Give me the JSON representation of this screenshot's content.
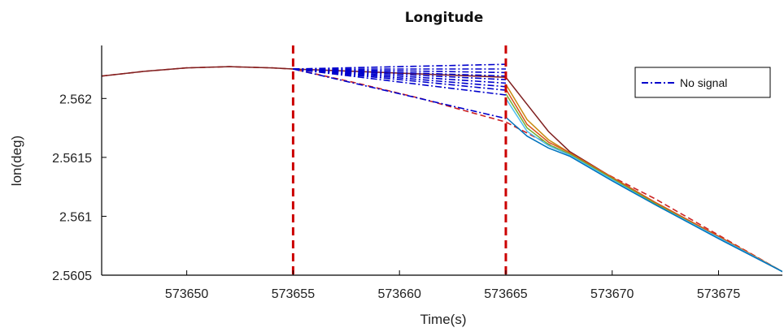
{
  "chart_data": {
    "type": "line",
    "title": "Longitude",
    "xlabel": "Time(s)",
    "ylabel": "lon(deg)",
    "xlim": [
      573646,
      573678
    ],
    "ylim": [
      2.5605,
      2.56245
    ],
    "xticks": [
      573650,
      573655,
      573660,
      573665,
      573670,
      573675
    ],
    "xtick_labels": [
      "573650",
      "573655",
      "573660",
      "573665",
      "573670",
      "573675"
    ],
    "yticks": [
      2.5605,
      2.561,
      2.5615,
      2.562
    ],
    "ytick_labels": [
      "2.5605",
      "2.561",
      "2.5615",
      "2.562"
    ],
    "grid": false,
    "legend": {
      "position": "top-right",
      "entries": [
        {
          "label": "No signal",
          "color": "#0000cc",
          "style": "dash-dot"
        }
      ]
    },
    "vlines": [
      {
        "x": 573655,
        "color": "#cc0000",
        "style": "dashed"
      },
      {
        "x": 573665,
        "color": "#cc0000",
        "style": "dashed"
      }
    ],
    "series": [
      {
        "color": "#cc2222",
        "style": "dashed",
        "x": [
          573646,
          573648,
          573650,
          573652,
          573654,
          573655,
          573658,
          573661,
          573664,
          573665,
          573668,
          573672,
          573678
        ],
        "y": [
          2.56219,
          2.56223,
          2.56226,
          2.56227,
          2.56226,
          2.56225,
          2.56213,
          2.562,
          2.56185,
          2.5618,
          2.56152,
          2.56115,
          2.56053
        ]
      },
      {
        "color": "#7f1f1f",
        "style": "solid",
        "x": [
          573646,
          573648,
          573650,
          573652,
          573654,
          573655,
          573665,
          573666,
          573667,
          573668,
          573670,
          573672,
          573675,
          573678
        ],
        "y": [
          2.56219,
          2.56223,
          2.56226,
          2.56227,
          2.56226,
          2.56225,
          2.56218,
          2.56195,
          2.56172,
          2.56155,
          2.56133,
          2.56112,
          2.56083,
          2.56053
        ]
      },
      {
        "color": "#c88a10",
        "style": "solid",
        "x": [
          573665,
          573666,
          573667,
          573668,
          573670,
          573672,
          573675,
          573678
        ],
        "y": [
          2.56212,
          2.56182,
          2.56165,
          2.56154,
          2.56133,
          2.56112,
          2.56083,
          2.56053
        ]
      },
      {
        "color": "#d9541a",
        "style": "solid",
        "x": [
          573665,
          573666,
          573667,
          573668,
          573670,
          573672,
          573675,
          573678
        ],
        "y": [
          2.56208,
          2.56178,
          2.56163,
          2.56154,
          2.56133,
          2.56112,
          2.56083,
          2.56053
        ]
      },
      {
        "color": "#77ac30",
        "style": "solid",
        "x": [
          573665,
          573666,
          573667,
          573668,
          573670,
          573672,
          573675,
          573678
        ],
        "y": [
          2.56204,
          2.56175,
          2.56161,
          2.56153,
          2.56132,
          2.56111,
          2.56082,
          2.56053
        ]
      },
      {
        "color": "#4dbeee",
        "style": "solid",
        "x": [
          573665,
          573666,
          573667,
          573668,
          573670,
          573672,
          573675,
          573678
        ],
        "y": [
          2.562,
          2.56172,
          2.5616,
          2.56152,
          2.56131,
          2.5611,
          2.56082,
          2.56053
        ]
      },
      {
        "color": "#0072bd",
        "style": "solid",
        "x": [
          573665,
          573666,
          573667,
          573668,
          573670,
          573672,
          573675,
          573678
        ],
        "y": [
          2.56184,
          2.56168,
          2.56158,
          2.56151,
          2.5613,
          2.5611,
          2.56081,
          2.56053
        ]
      },
      {
        "color": "#0000cc",
        "style": "dash-dot",
        "x": [
          573655,
          573665
        ],
        "y": [
          2.56225,
          2.56229
        ]
      },
      {
        "color": "#0000cc",
        "style": "dash-dot",
        "x": [
          573655,
          573665
        ],
        "y": [
          2.56225,
          2.56225
        ]
      },
      {
        "color": "#0000cc",
        "style": "dash-dot",
        "x": [
          573655,
          573665
        ],
        "y": [
          2.56225,
          2.56222
        ]
      },
      {
        "color": "#0000cc",
        "style": "dash-dot",
        "x": [
          573655,
          573665
        ],
        "y": [
          2.56225,
          2.56219
        ]
      },
      {
        "color": "#0000cc",
        "style": "dash-dot",
        "x": [
          573655,
          573665
        ],
        "y": [
          2.56225,
          2.56216
        ]
      },
      {
        "color": "#0000cc",
        "style": "dash-dot",
        "x": [
          573655,
          573665
        ],
        "y": [
          2.56225,
          2.56213
        ]
      },
      {
        "color": "#0000cc",
        "style": "dash-dot",
        "x": [
          573655,
          573665
        ],
        "y": [
          2.56225,
          2.5621
        ]
      },
      {
        "color": "#0000cc",
        "style": "dash-dot",
        "x": [
          573655,
          573665
        ],
        "y": [
          2.56225,
          2.56207
        ]
      },
      {
        "color": "#0000cc",
        "style": "dash-dot",
        "x": [
          573655,
          573665
        ],
        "y": [
          2.56225,
          2.56203
        ]
      },
      {
        "color": "#0000cc",
        "style": "dash-dot",
        "x": [
          573655,
          573665
        ],
        "y": [
          2.56225,
          2.56183
        ]
      }
    ]
  }
}
